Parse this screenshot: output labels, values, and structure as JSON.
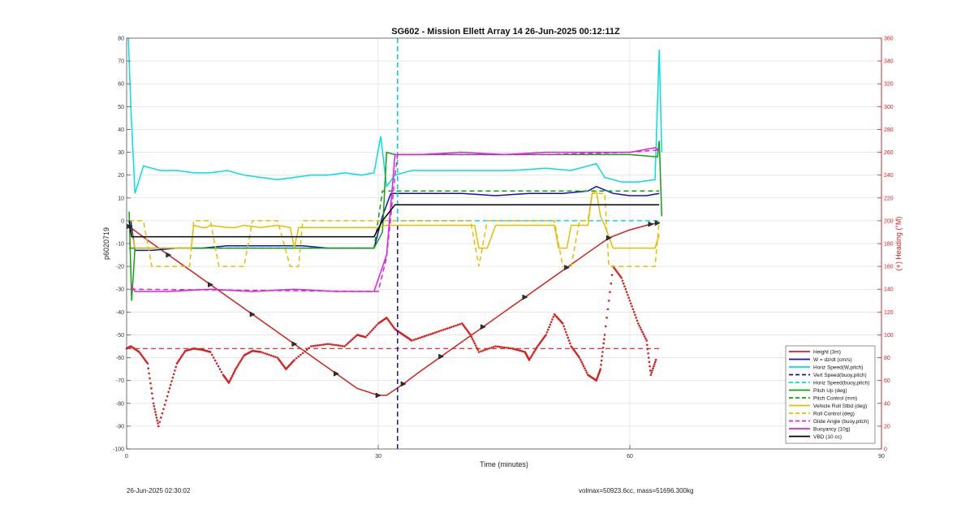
{
  "chart_data": {
    "type": "line",
    "title": "SG602 - Mission Ellett Array 14 26-Jun-2025 00:12:11Z",
    "xlabel": "Time (minutes)",
    "ylabel": "p6020719",
    "y2label": "(+) Heading (°M)",
    "xlim": [
      0,
      90
    ],
    "ylim": [
      -100,
      80
    ],
    "y2lim": [
      0,
      360
    ],
    "xticks": [
      0,
      30,
      60,
      90
    ],
    "yticks": [
      -100,
      -90,
      -80,
      -70,
      -60,
      -50,
      -40,
      -30,
      -20,
      -10,
      0,
      10,
      20,
      30,
      40,
      50,
      60,
      70,
      80
    ],
    "y2ticks": [
      0,
      20,
      40,
      60,
      80,
      100,
      120,
      140,
      160,
      180,
      200,
      220,
      240,
      260,
      280,
      300,
      320,
      340,
      360
    ],
    "grid": true,
    "legend_position": "bottom-right",
    "series": [
      {
        "name": "Height (3m)",
        "color": "#d62020",
        "style": "solid",
        "x": [
          0.3,
          2.5,
          5,
          7.5,
          10,
          12.5,
          15,
          17.5,
          20,
          22.5,
          25,
          27.5,
          30,
          31,
          33,
          35,
          37.5,
          40,
          42.5,
          45,
          47.5,
          50,
          52.5,
          55,
          57.5,
          60,
          62.5,
          63.3
        ],
        "y": [
          -2.5,
          -8.5,
          -15,
          -21.5,
          -28,
          -34.5,
          -41,
          -47.5,
          -54,
          -60.5,
          -67,
          -73.5,
          -76.5,
          -76.5,
          -71.5,
          -66,
          -59.5,
          -53,
          -46.5,
          -40,
          -33.5,
          -27,
          -20.5,
          -14,
          -7.5,
          -4,
          -1.5,
          -1
        ]
      },
      {
        "name": "W = dz/dt (cm/s)",
        "color": "#1010c0",
        "style": "solid",
        "x": [
          0.5,
          1,
          3,
          6,
          9,
          12,
          15,
          18,
          21,
          24,
          27,
          29.5,
          30.5,
          31.5,
          33,
          36,
          40,
          44,
          48,
          52,
          55,
          56,
          58,
          60,
          62,
          63.5
        ],
        "y": [
          0,
          -13,
          -13,
          -12,
          -12,
          -11,
          -11,
          -11,
          -11,
          -12,
          -12,
          -12,
          2,
          12,
          12,
          12,
          12,
          11,
          12,
          12,
          13,
          15,
          12,
          11,
          11,
          12
        ]
      },
      {
        "name": "Horiz Speed(W,pitch)",
        "color": "#00e0e0",
        "style": "solid",
        "x": [
          0.2,
          0.5,
          1,
          2,
          4,
          6,
          8,
          10,
          12,
          14,
          16,
          18,
          20,
          22,
          24,
          26,
          28,
          29.5,
          30.3,
          31,
          32,
          34,
          38,
          42,
          46,
          50,
          53,
          55,
          56,
          57,
          59,
          61,
          63,
          63.5,
          63.8
        ],
        "y": [
          80,
          50,
          12,
          24,
          22,
          22,
          21,
          21,
          22,
          20,
          19,
          18,
          19,
          20,
          20,
          21,
          20,
          21,
          37,
          15,
          20,
          22,
          22,
          22,
          22,
          23,
          22,
          24,
          25,
          19,
          17,
          17,
          18,
          75,
          30
        ]
      },
      {
        "name": "Vert Speed(buoy,pitch)",
        "color": "#1010c0",
        "style": "dashed",
        "x": [
          32.3,
          32.3
        ],
        "y": [
          -100,
          80
        ]
      },
      {
        "name": "Horiz Speed(buoy,pitch)",
        "color": "#00e0e0",
        "style": "dashed",
        "x": [
          32.3,
          32.3,
          32.4,
          63.5
        ],
        "y": [
          80,
          0,
          0,
          0
        ]
      },
      {
        "name": "Pitch Up (deg)",
        "color": "#10a010",
        "style": "solid",
        "x": [
          0.3,
          0.6,
          1,
          2,
          5,
          10,
          15,
          20,
          25,
          29.5,
          30.5,
          31,
          32,
          40,
          50,
          60,
          63.3,
          63.5,
          63.8
        ],
        "y": [
          4,
          -35,
          -12,
          -12,
          -12,
          -12,
          -12,
          -12,
          -12,
          -12,
          -5,
          30,
          29,
          29,
          29,
          29,
          28,
          35,
          2
        ]
      },
      {
        "name": "Pitch Control (mm)",
        "color": "#10a010",
        "style": "dashed",
        "x": [
          0.3,
          29.5,
          30.5,
          63.5
        ],
        "y": [
          -12,
          -12,
          13,
          13
        ]
      },
      {
        "name": "Vehicle Roll Stbd (deg)",
        "color": "#e0c000",
        "style": "solid",
        "x": [
          0.3,
          1,
          3,
          7,
          7.7,
          8,
          9,
          9.5,
          10,
          12,
          13,
          14,
          16,
          18,
          19.5,
          20,
          20.5,
          25,
          29.5,
          30,
          31,
          35,
          40,
          41.5,
          42,
          43,
          44,
          50,
          51,
          51.5,
          52.5,
          53,
          55,
          55.5,
          56,
          56.5,
          57,
          58,
          60,
          62,
          63,
          63.5
        ],
        "y": [
          0,
          -12,
          -12,
          -12,
          -12,
          -2,
          -3,
          -3,
          -2,
          -3,
          -3,
          -2,
          -3,
          -2,
          -3,
          -12,
          -3,
          -3,
          -3,
          -3,
          -2,
          -2,
          -2,
          -2,
          -12,
          -12,
          -2,
          -2,
          -2,
          -12,
          -12,
          -2,
          -2,
          12,
          13,
          2,
          -2,
          -12,
          -12,
          -12,
          -12,
          -6
        ]
      },
      {
        "name": "Roll Control (deg)",
        "color": "#e0c000",
        "style": "dashed",
        "x": [
          0.3,
          2,
          3,
          7.5,
          8,
          10,
          11,
          14,
          15,
          18,
          19.5,
          20.5,
          21,
          31,
          41,
          42,
          43,
          51,
          52,
          53,
          54,
          55,
          55.5,
          57,
          57.5,
          58,
          62,
          63,
          63.5
        ],
        "y": [
          0,
          0,
          -20,
          -20,
          0,
          0,
          -20,
          -20,
          0,
          0,
          -20,
          -20,
          0,
          0,
          0,
          -20,
          0,
          0,
          -20,
          -20,
          0,
          0,
          12,
          12,
          -20,
          -20,
          -20,
          -20,
          0
        ]
      },
      {
        "name": "Glide Angle (buoy,pitch)",
        "color": "#e020e0",
        "style": "dashed",
        "x": [
          0.5,
          30,
          31,
          32,
          32.3,
          33,
          40,
          50,
          60,
          63.5
        ],
        "y": [
          -30,
          -31,
          -16,
          20,
          29,
          29,
          29,
          29,
          30,
          31
        ]
      },
      {
        "name": "Buoyancy (10g)",
        "color": "#e020e0",
        "style": "solid",
        "x": [
          0.5,
          1,
          5,
          10,
          15,
          20,
          25,
          29.5,
          31,
          32,
          35,
          40,
          45,
          50,
          55,
          60,
          63,
          63.5
        ],
        "y": [
          -28,
          -31,
          -31,
          -30,
          -31,
          -30,
          -31,
          -31,
          -15,
          29,
          29,
          30,
          29,
          30,
          30,
          30,
          32,
          31
        ]
      },
      {
        "name": "VBD (10 cc)",
        "color": "#000000",
        "style": "solid",
        "x": [
          0.3,
          0.6,
          1,
          10,
          20,
          29.5,
          30.5,
          32,
          40,
          50,
          60,
          63.5
        ],
        "y": [
          0,
          -7,
          -7,
          -7,
          -7,
          -7,
          0,
          7,
          7,
          7,
          7,
          7
        ]
      }
    ],
    "heading": {
      "name": "Heading (°M)",
      "color": "#d62020",
      "style": "dotted-markers",
      "axis": "right",
      "x": [
        0,
        0.5,
        1.5,
        2.5,
        3.2,
        3.8,
        5,
        6,
        7,
        8,
        9,
        10,
        11.5,
        12.2,
        13,
        14,
        15,
        16,
        18,
        19,
        20,
        22,
        24,
        26,
        27.5,
        28.5,
        30,
        31,
        32,
        33,
        34,
        36,
        38,
        40,
        41,
        42,
        44,
        46,
        47.5,
        48,
        49,
        50,
        51,
        52,
        53,
        54,
        55,
        56,
        56.5,
        57,
        58,
        59,
        60,
        61,
        62,
        62.5,
        63.2
      ],
      "y": [
        88,
        90,
        85,
        75,
        40,
        20,
        50,
        75,
        86,
        88,
        87,
        85,
        65,
        58,
        70,
        82,
        86,
        85,
        80,
        70,
        78,
        90,
        92,
        90,
        100,
        98,
        110,
        115,
        105,
        100,
        95,
        100,
        105,
        110,
        100,
        85,
        90,
        88,
        85,
        78,
        90,
        100,
        118,
        110,
        90,
        80,
        65,
        60,
        70,
        100,
        160,
        150,
        130,
        110,
        95,
        65,
        80
      ]
    },
    "heading_reference": {
      "value": 88,
      "color": "#d62020",
      "style": "dashed",
      "axis": "right",
      "x": [
        0,
        63.5
      ]
    }
  },
  "footer": {
    "left": "26-Jun-2025 02:30:02",
    "right": "volmax=50923.6cc, mass=51696.300kg"
  }
}
